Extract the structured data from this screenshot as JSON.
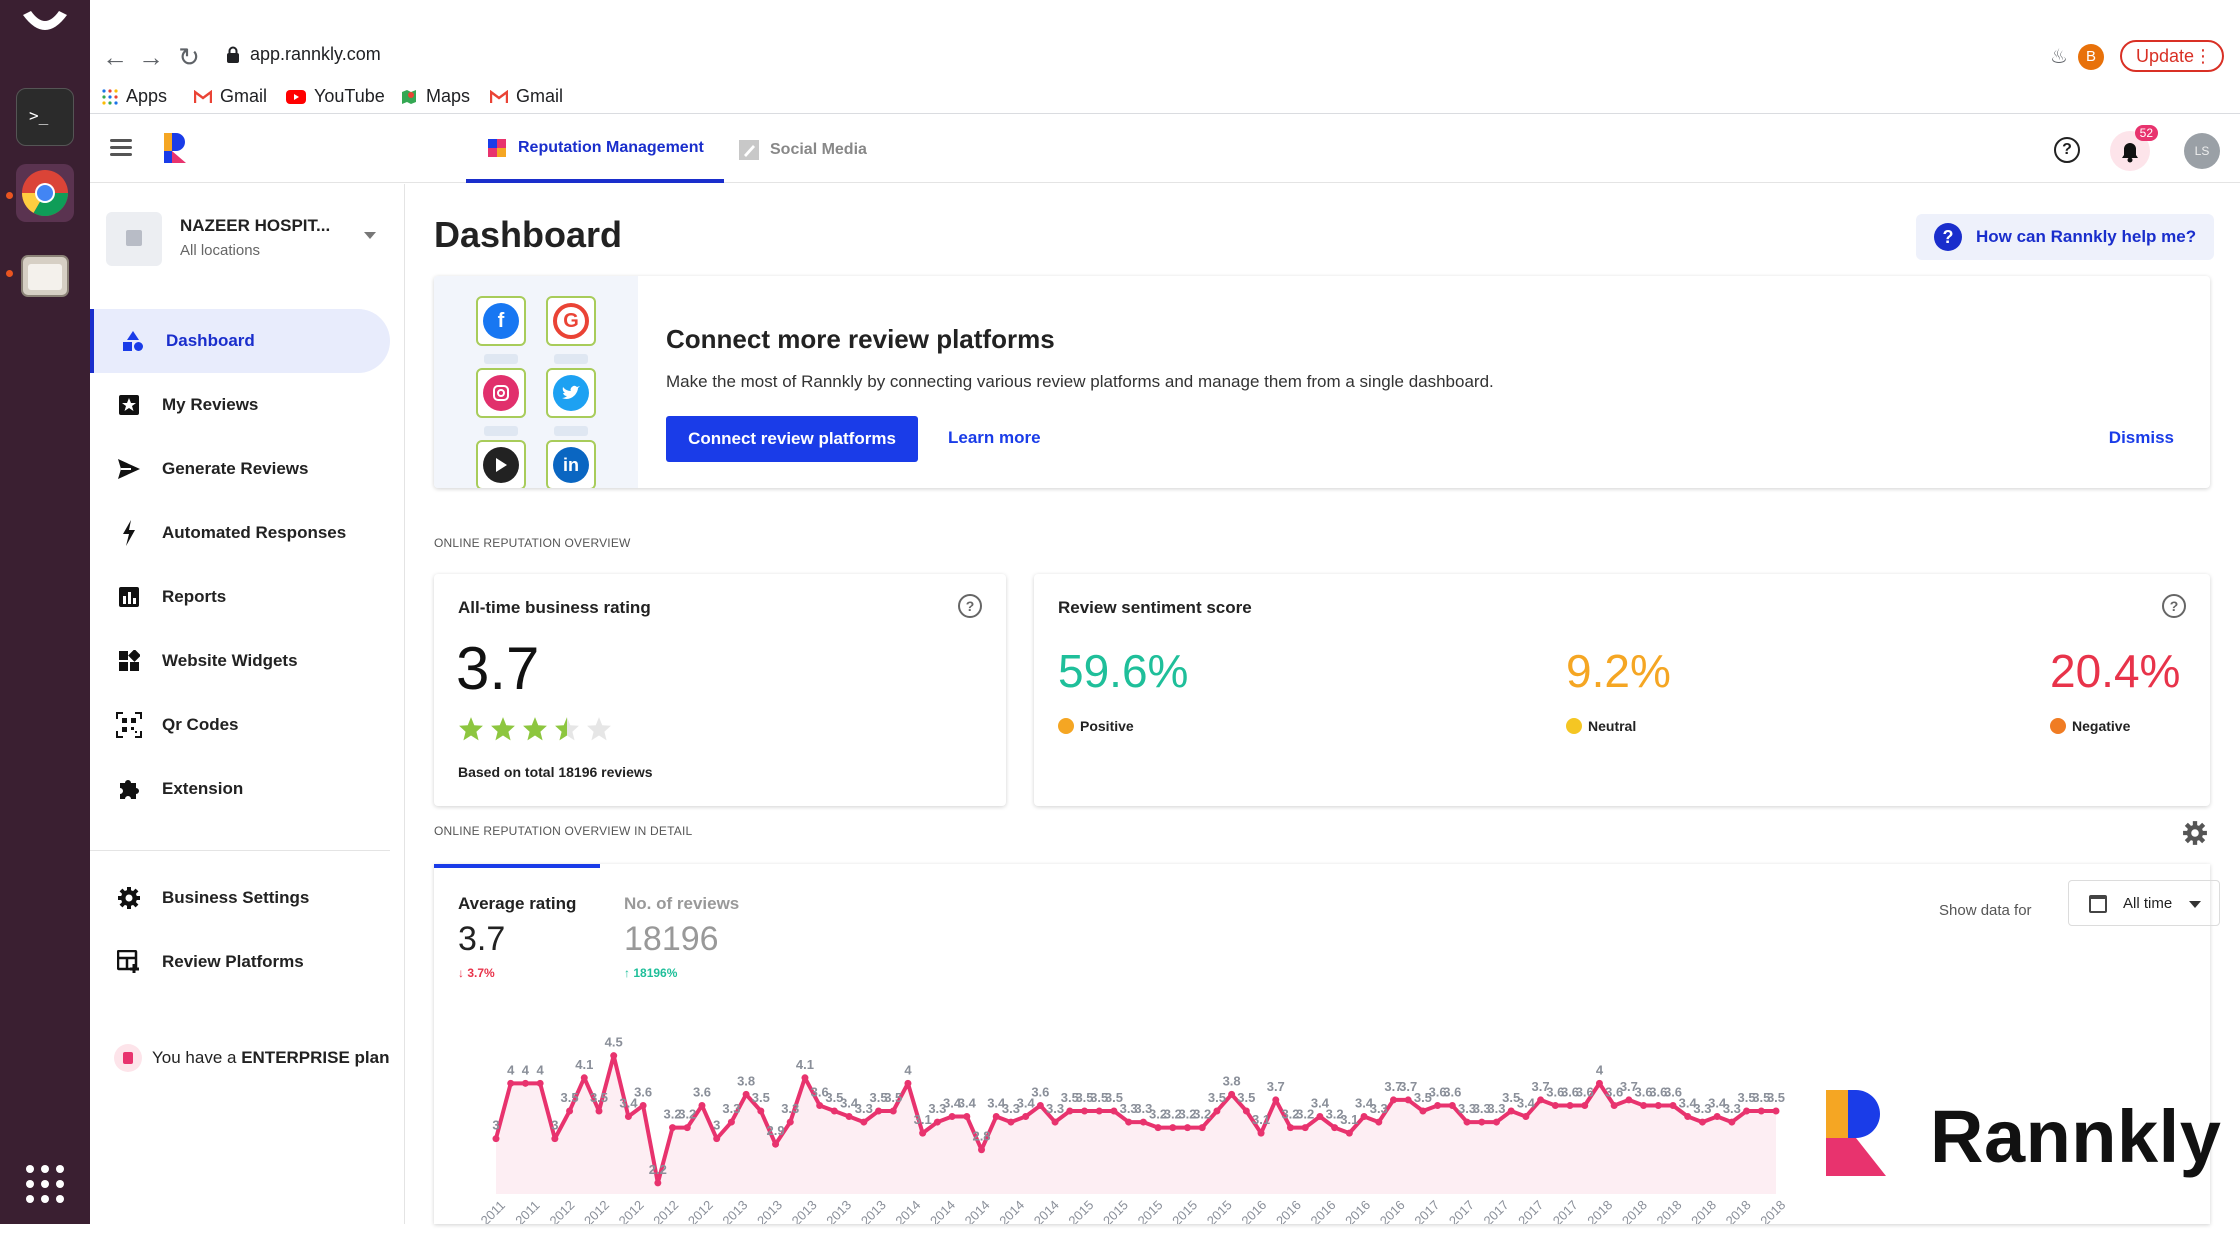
{
  "browser": {
    "url": "app.rannkly.com",
    "update_label": "Update",
    "profile_initial": "B",
    "bookmarks": [
      {
        "label": "Apps",
        "icon": "apps-grid-icon"
      },
      {
        "label": "Gmail",
        "icon": "gmail-icon"
      },
      {
        "label": "YouTube",
        "icon": "youtube-icon"
      },
      {
        "label": "Maps",
        "icon": "maps-icon"
      },
      {
        "label": "Gmail",
        "icon": "gmail-icon"
      }
    ]
  },
  "header": {
    "tabs": [
      {
        "label": "Reputation Management",
        "active": true
      },
      {
        "label": "Social Media",
        "active": false
      }
    ],
    "notification_count": "52",
    "user_initials": "LS"
  },
  "sidebar": {
    "business_name": "NAZEER HOSPIT...",
    "business_sub": "All locations",
    "items": [
      {
        "label": "Dashboard",
        "icon": "shapes-icon"
      },
      {
        "label": "My Reviews",
        "icon": "star-box-icon"
      },
      {
        "label": "Generate Reviews",
        "icon": "send-icon"
      },
      {
        "label": "Automated Responses",
        "icon": "bolt-icon"
      },
      {
        "label": "Reports",
        "icon": "bar-chart-icon"
      },
      {
        "label": "Website Widgets",
        "icon": "widgets-icon"
      },
      {
        "label": "Qr Codes",
        "icon": "qr-code-icon"
      },
      {
        "label": "Extension",
        "icon": "puzzle-icon"
      },
      {
        "label": "Business Settings",
        "icon": "gear-icon"
      },
      {
        "label": "Review Platforms",
        "icon": "platforms-icon"
      }
    ],
    "plan_prefix": "You have a ",
    "plan_name": "ENTERPRISE plan"
  },
  "main": {
    "title": "Dashboard",
    "help_chip": "How can Rannkly help me?",
    "connect": {
      "title": "Connect more review platforms",
      "description": "Make the most of Rannkly by connecting various review platforms and manage them from a single dashboard.",
      "primary_button": "Connect review platforms",
      "learn_more": "Learn more",
      "dismiss": "Dismiss"
    },
    "overview_label": "ONLINE REPUTATION OVERVIEW",
    "rating_card": {
      "title": "All-time business rating",
      "value": "3.7",
      "stars": 3.5,
      "based_on": "Based on total 18196 reviews"
    },
    "sentiment_card": {
      "title": "Review sentiment score",
      "positive": {
        "value": "59.6%",
        "label": "Positive",
        "color": "#1fbf9a"
      },
      "neutral": {
        "value": "9.2%",
        "label": "Neutral",
        "color": "#f5a623"
      },
      "negative": {
        "value": "20.4%",
        "label": "Negative",
        "color": "#e8334a"
      }
    },
    "detail_label": "ONLINE REPUTATION OVERVIEW IN DETAIL",
    "detail": {
      "avg_label": "Average rating",
      "avg_value": "3.7",
      "avg_change": "3.7%",
      "reviews_label": "No. of reviews",
      "reviews_value": "18196",
      "reviews_change": "18196%",
      "show_data_for": "Show data for",
      "range": "All time"
    }
  },
  "chart_data": {
    "type": "area",
    "color": "#e8336e",
    "ylim": [
      2,
      5
    ],
    "values": [
      3,
      4,
      4,
      4,
      3,
      3.5,
      4.1,
      3.5,
      4.5,
      3.4,
      3.6,
      2.2,
      3.2,
      3.2,
      3.6,
      3,
      3.3,
      3.8,
      3.5,
      2.9,
      3.3,
      4.1,
      3.6,
      3.5,
      3.4,
      3.3,
      3.5,
      3.5,
      4,
      3.1,
      3.3,
      3.4,
      3.4,
      2.8,
      3.4,
      3.3,
      3.4,
      3.6,
      3.3,
      3.5,
      3.5,
      3.5,
      3.5,
      3.3,
      3.3,
      3.2,
      3.2,
      3.2,
      3.2,
      3.5,
      3.8,
      3.5,
      3.1,
      3.7,
      3.2,
      3.2,
      3.4,
      3.2,
      3.1,
      3.4,
      3.3,
      3.7,
      3.7,
      3.5,
      3.6,
      3.6,
      3.3,
      3.3,
      3.3,
      3.5,
      3.4,
      3.7,
      3.6,
      3.6,
      3.6,
      4,
      3.6,
      3.7,
      3.6,
      3.6,
      3.6,
      3.4,
      3.3,
      3.4,
      3.3,
      3.5,
      3.5,
      3.5
    ],
    "x_ticks": [
      "2011",
      "2011",
      "2012",
      "2012",
      "2012",
      "2012",
      "2012",
      "2013",
      "2013",
      "2013",
      "2013",
      "2013",
      "2014",
      "2014",
      "2014",
      "2014",
      "2014",
      "2015",
      "2015",
      "2015",
      "2015",
      "2015",
      "2016",
      "2016",
      "2016",
      "2016",
      "2016",
      "2017",
      "2017",
      "2017",
      "2017",
      "2017",
      "2018",
      "2018",
      "2018",
      "2018",
      "2018",
      "2018"
    ]
  },
  "brand": {
    "name": "Rannkly"
  }
}
